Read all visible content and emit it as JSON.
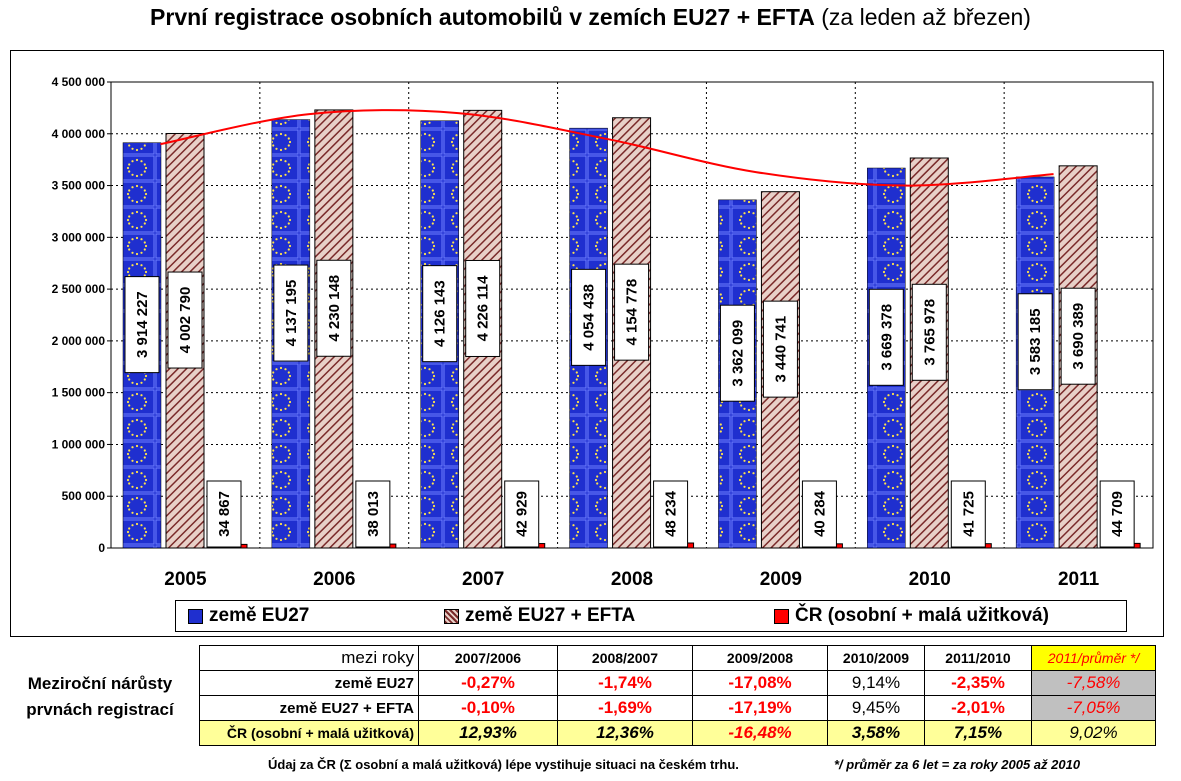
{
  "title_main": "První registrace osobních automobilů v zemích EU27 + EFTA",
  "title_sub": "(za leden až březen)",
  "colors": {
    "eu27": "#1f2fcf",
    "eu27_efta": "#a05050",
    "cr": "#ff0000",
    "trend": "#ff0000"
  },
  "legend": {
    "eu27": "země EU27",
    "eu27_efta": "země EU27 + EFTA",
    "cr": "ČR (osobní + malá užitková)"
  },
  "chart_data": {
    "type": "bar",
    "categories": [
      "2005",
      "2006",
      "2007",
      "2008",
      "2009",
      "2010",
      "2011"
    ],
    "y_ticks": [
      "0",
      "500 000",
      "1 000 000",
      "1 500 000",
      "2 000 000",
      "2 500 000",
      "3 000 000",
      "3 500 000",
      "4 000 000",
      "4 500 000"
    ],
    "ylim": [
      0,
      4500000
    ],
    "grid": "dashed",
    "legend_position": "bottom",
    "series": [
      {
        "name": "země EU27",
        "values": [
          3914227,
          4137195,
          4126143,
          4054438,
          3362099,
          3669378,
          3583185
        ],
        "labels": [
          "3 914 227",
          "4 137 195",
          "4 126 143",
          "4 054 438",
          "3 362 099",
          "3 669 378",
          "3 583 185"
        ]
      },
      {
        "name": "země EU27 + EFTA",
        "values": [
          4002790,
          4230148,
          4226114,
          4154778,
          3440741,
          3765978,
          3690389
        ],
        "labels": [
          "4 002 790",
          "4 230 148",
          "4 226 114",
          "4 154 778",
          "3 440 741",
          "3 765 978",
          "3 690 389"
        ]
      },
      {
        "name": "ČR (osobní + malá užitková)",
        "values": [
          34867,
          38013,
          42929,
          48234,
          40284,
          41725,
          44709
        ],
        "labels": [
          "34 867",
          "38 013",
          "42 929",
          "48 234",
          "40 284",
          "41 725",
          "44 709"
        ]
      }
    ],
    "trend_line": {
      "values": [
        3900000,
        4190000,
        4200000,
        3950000,
        3630000,
        3500000,
        3610000
      ]
    }
  },
  "table": {
    "side_label_1": "Meziroční nárůsty",
    "side_label_2": "prvnách registrací",
    "header_label": "mezi roky",
    "headers": [
      "2007/2006",
      "2008/2007",
      "2009/2008",
      "2010/2009",
      "2011/2010",
      "2011/průměr */"
    ],
    "rows": [
      {
        "label": "země EU27",
        "values": [
          "-0,27%",
          "-1,74%",
          "-17,08%",
          "9,14%",
          "-2,35%",
          "-7,58%"
        ]
      },
      {
        "label": "země EU27 + EFTA",
        "values": [
          "-0,10%",
          "-1,69%",
          "-17,19%",
          "9,45%",
          "-2,01%",
          "-7,05%"
        ]
      },
      {
        "label": "ČR (osobní + malá užitková)",
        "values": [
          "12,93%",
          "12,36%",
          "-16,48%",
          "3,58%",
          "7,15%",
          "9,02%"
        ]
      }
    ],
    "footnote_left": "Údaj za ČR (Σ osobní a malá užitková) lépe vystihuje situaci na českém trhu.",
    "footnote_right": "*/ průměr za 6 let = za roky 2005 až 2010"
  }
}
